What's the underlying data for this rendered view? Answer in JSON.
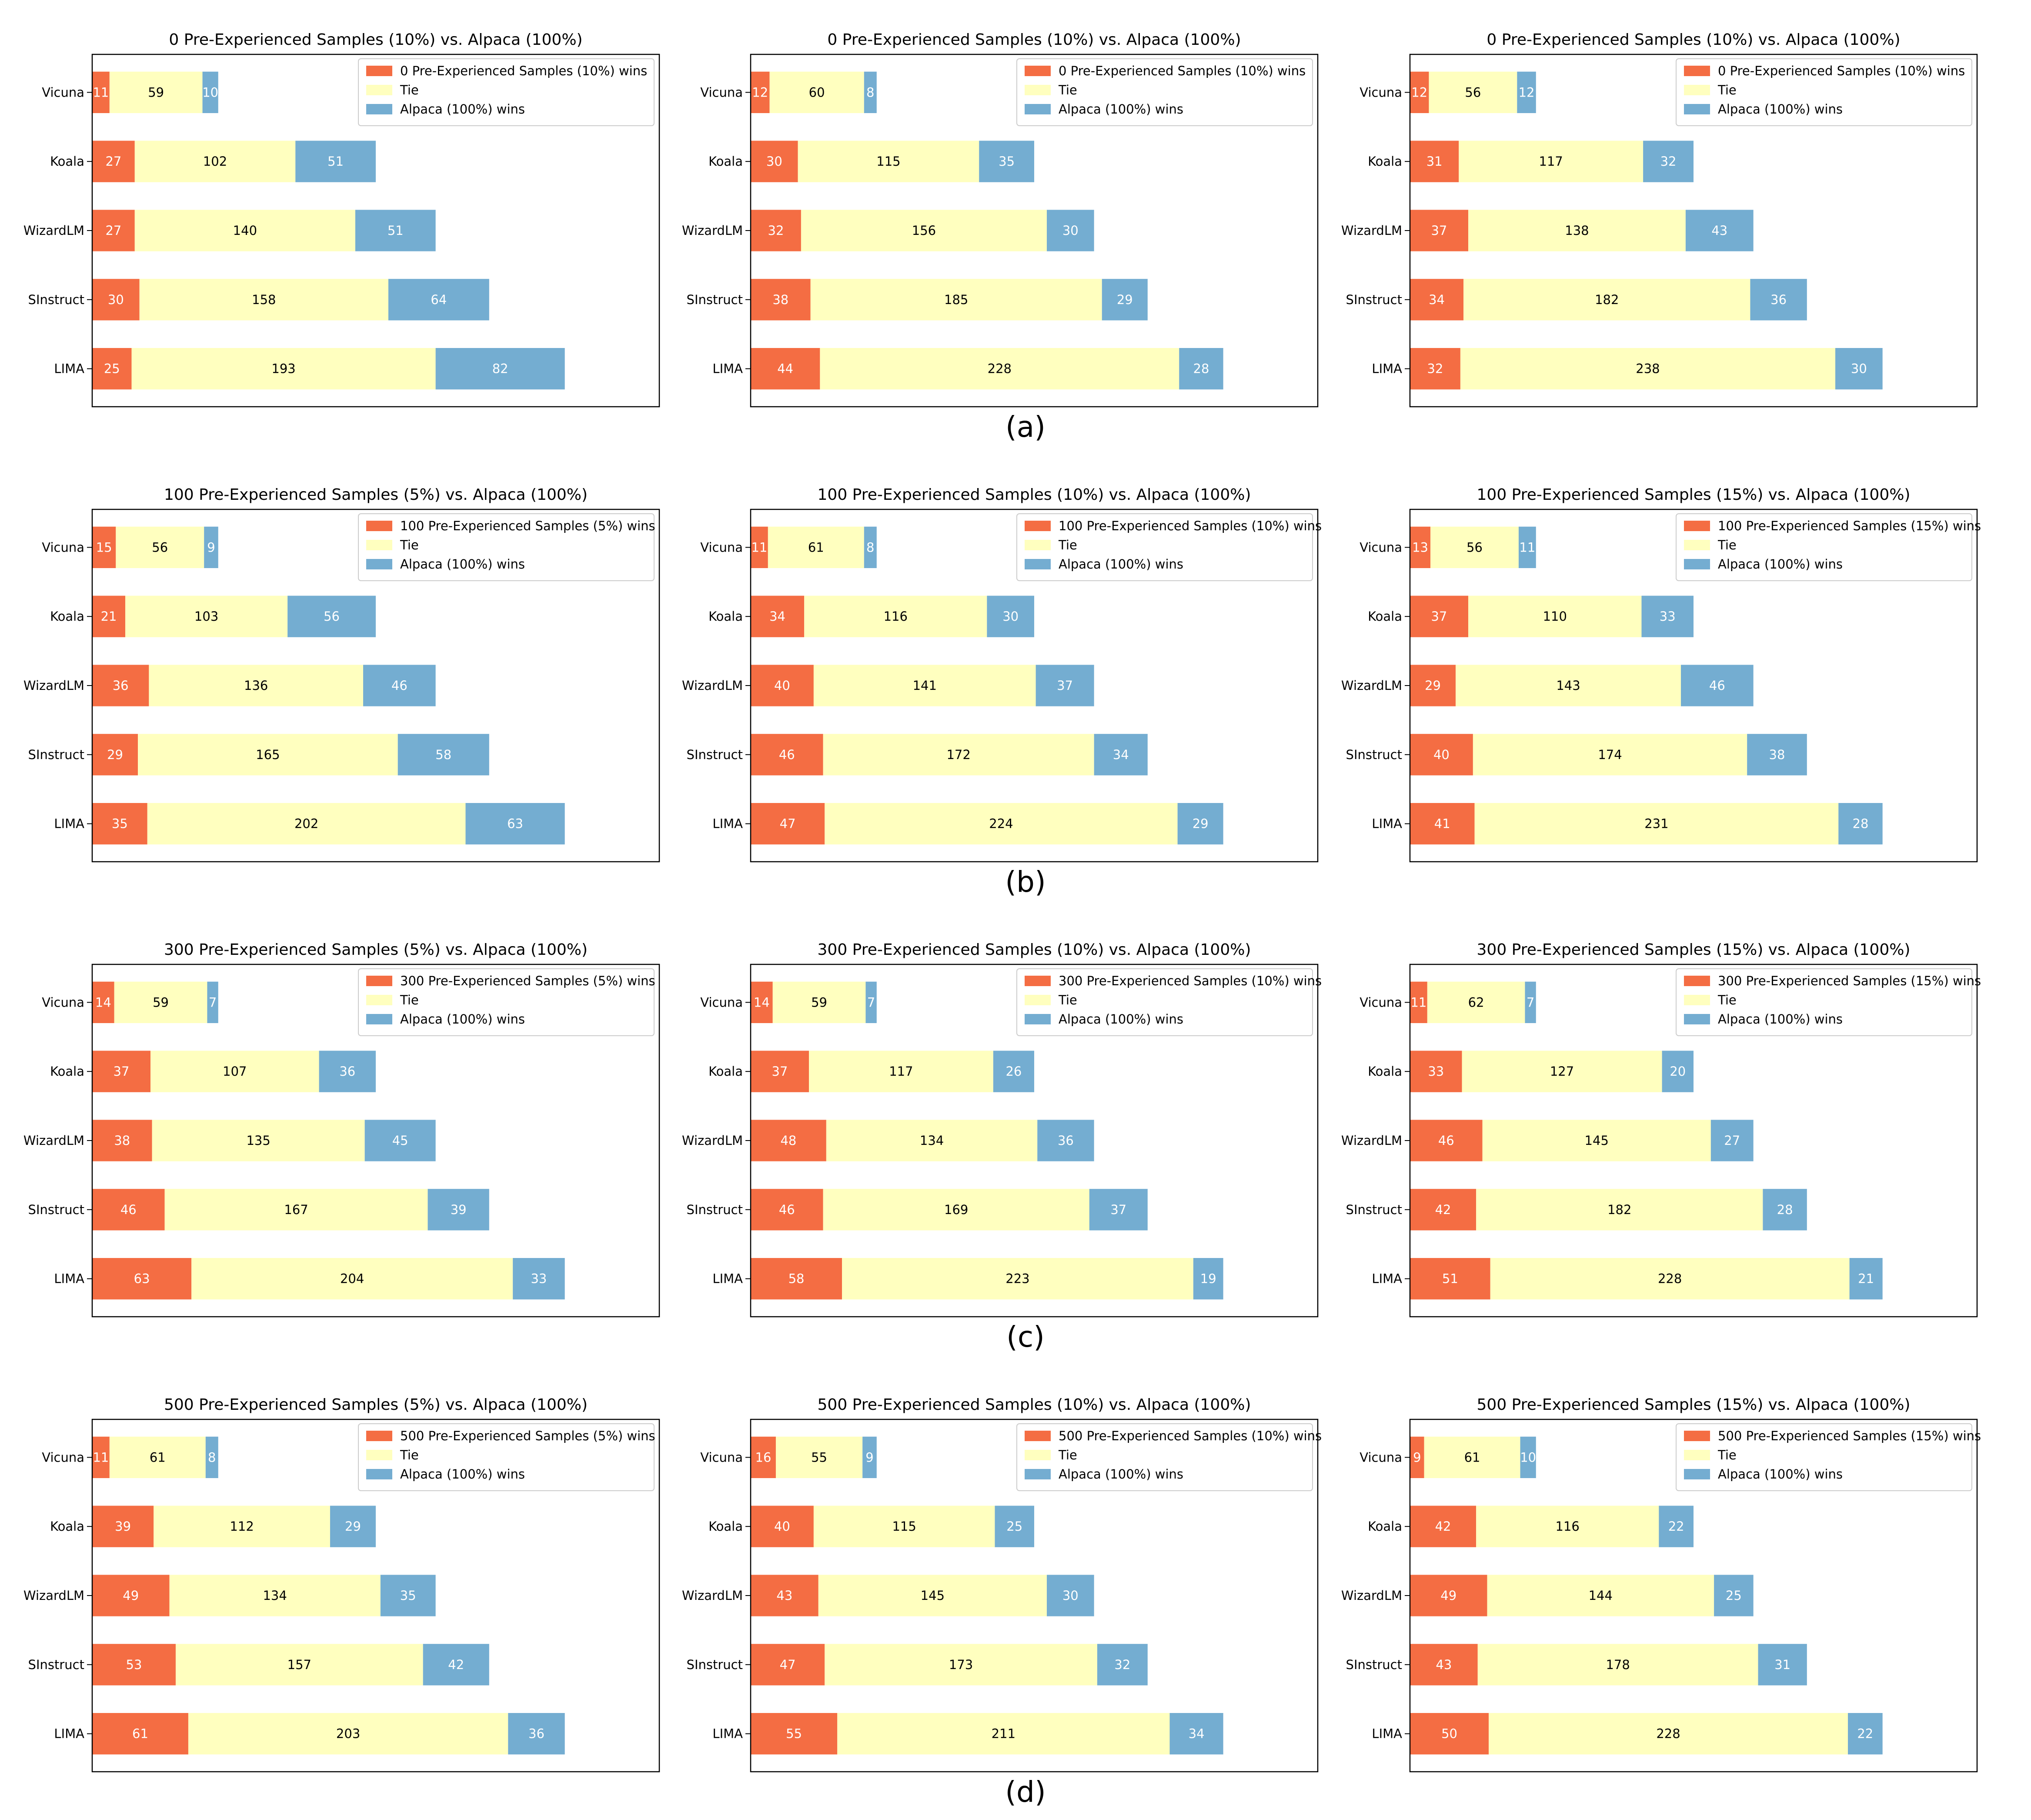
{
  "colors": {
    "wins": "#F46D43",
    "tie": "#FFFFBF",
    "loss": "#74ADD1",
    "frame": "#000000"
  },
  "categories": [
    "Vicuna",
    "Koala",
    "WizardLM",
    "SInstruct",
    "LIMA"
  ],
  "row_labels": [
    "(a)",
    "(b)",
    "(c)",
    "(d)"
  ],
  "chart_data": [
    {
      "type": "bar",
      "orientation": "horizontal-stacked",
      "title": "0 Pre-Experienced Samples (10%) vs. Alpaca (100%)",
      "categories": [
        "Vicuna",
        "Koala",
        "WizardLM",
        "SInstruct",
        "LIMA"
      ],
      "legend": [
        "0 Pre-Experienced Samples (10%) wins",
        "Tie",
        "Alpaca (100%) wins"
      ],
      "legend_position": "top-right",
      "series": [
        {
          "name": "0 Pre-Experienced Samples (10%) wins",
          "values": [
            11,
            27,
            27,
            30,
            25
          ]
        },
        {
          "name": "Tie",
          "values": [
            59,
            102,
            140,
            158,
            193
          ]
        },
        {
          "name": "Alpaca (100%) wins",
          "values": [
            10,
            51,
            51,
            64,
            82
          ]
        }
      ],
      "xlim": [
        0,
        300
      ]
    },
    {
      "type": "bar",
      "orientation": "horizontal-stacked",
      "title": "0 Pre-Experienced Samples (10%) vs. Alpaca (100%)",
      "categories": [
        "Vicuna",
        "Koala",
        "WizardLM",
        "SInstruct",
        "LIMA"
      ],
      "legend": [
        "0 Pre-Experienced Samples (10%) wins",
        "Tie",
        "Alpaca (100%) wins"
      ],
      "legend_position": "top-right",
      "series": [
        {
          "name": "0 Pre-Experienced Samples (10%) wins",
          "values": [
            12,
            30,
            32,
            38,
            44
          ]
        },
        {
          "name": "Tie",
          "values": [
            60,
            115,
            156,
            185,
            228
          ]
        },
        {
          "name": "Alpaca (100%) wins",
          "values": [
            8,
            35,
            30,
            29,
            28
          ]
        }
      ],
      "xlim": [
        0,
        300
      ]
    },
    {
      "type": "bar",
      "orientation": "horizontal-stacked",
      "title": "0 Pre-Experienced Samples (10%) vs. Alpaca (100%)",
      "categories": [
        "Vicuna",
        "Koala",
        "WizardLM",
        "SInstruct",
        "LIMA"
      ],
      "legend": [
        "0 Pre-Experienced Samples (10%) wins",
        "Tie",
        "Alpaca (100%) wins"
      ],
      "legend_position": "top-right",
      "series": [
        {
          "name": "0 Pre-Experienced Samples (10%) wins",
          "values": [
            12,
            31,
            37,
            34,
            32
          ]
        },
        {
          "name": "Tie",
          "values": [
            56,
            117,
            138,
            182,
            238
          ]
        },
        {
          "name": "Alpaca (100%) wins",
          "values": [
            12,
            32,
            43,
            36,
            30
          ]
        }
      ],
      "xlim": [
        0,
        300
      ]
    },
    {
      "type": "bar",
      "orientation": "horizontal-stacked",
      "title": "100 Pre-Experienced Samples (5%) vs. Alpaca (100%)",
      "categories": [
        "Vicuna",
        "Koala",
        "WizardLM",
        "SInstruct",
        "LIMA"
      ],
      "legend": [
        "100 Pre-Experienced Samples (5%) wins",
        "Tie",
        "Alpaca (100%) wins"
      ],
      "legend_position": "top-right",
      "series": [
        {
          "name": "100 Pre-Experienced Samples (5%) wins",
          "values": [
            15,
            21,
            36,
            29,
            35
          ]
        },
        {
          "name": "Tie",
          "values": [
            56,
            103,
            136,
            165,
            202
          ]
        },
        {
          "name": "Alpaca (100%) wins",
          "values": [
            9,
            56,
            46,
            58,
            63
          ]
        }
      ],
      "xlim": [
        0,
        300
      ]
    },
    {
      "type": "bar",
      "orientation": "horizontal-stacked",
      "title": "100 Pre-Experienced Samples (10%) vs. Alpaca (100%)",
      "categories": [
        "Vicuna",
        "Koala",
        "WizardLM",
        "SInstruct",
        "LIMA"
      ],
      "legend": [
        "100 Pre-Experienced Samples (10%) wins",
        "Tie",
        "Alpaca (100%) wins"
      ],
      "legend_position": "top-right",
      "series": [
        {
          "name": "100 Pre-Experienced Samples (10%) wins",
          "values": [
            11,
            34,
            40,
            46,
            47
          ]
        },
        {
          "name": "Tie",
          "values": [
            61,
            116,
            141,
            172,
            224
          ]
        },
        {
          "name": "Alpaca (100%) wins",
          "values": [
            8,
            30,
            37,
            34,
            29
          ]
        }
      ],
      "xlim": [
        0,
        300
      ]
    },
    {
      "type": "bar",
      "orientation": "horizontal-stacked",
      "title": "100 Pre-Experienced Samples (15%) vs. Alpaca (100%)",
      "categories": [
        "Vicuna",
        "Koala",
        "WizardLM",
        "SInstruct",
        "LIMA"
      ],
      "legend": [
        "100 Pre-Experienced Samples (15%) wins",
        "Tie",
        "Alpaca (100%) wins"
      ],
      "legend_position": "top-right",
      "series": [
        {
          "name": "100 Pre-Experienced Samples (15%) wins",
          "values": [
            13,
            37,
            29,
            40,
            41
          ]
        },
        {
          "name": "Tie",
          "values": [
            56,
            110,
            143,
            174,
            231
          ]
        },
        {
          "name": "Alpaca (100%) wins",
          "values": [
            11,
            33,
            46,
            38,
            28
          ]
        }
      ],
      "xlim": [
        0,
        300
      ]
    },
    {
      "type": "bar",
      "orientation": "horizontal-stacked",
      "title": "300 Pre-Experienced Samples (5%) vs. Alpaca (100%)",
      "categories": [
        "Vicuna",
        "Koala",
        "WizardLM",
        "SInstruct",
        "LIMA"
      ],
      "legend": [
        "300 Pre-Experienced Samples (5%) wins",
        "Tie",
        "Alpaca (100%) wins"
      ],
      "legend_position": "top-right",
      "series": [
        {
          "name": "300 Pre-Experienced Samples (5%) wins",
          "values": [
            14,
            37,
            38,
            46,
            63
          ]
        },
        {
          "name": "Tie",
          "values": [
            59,
            107,
            135,
            167,
            204
          ]
        },
        {
          "name": "Alpaca (100%) wins",
          "values": [
            7,
            36,
            45,
            39,
            33
          ]
        }
      ],
      "xlim": [
        0,
        300
      ]
    },
    {
      "type": "bar",
      "orientation": "horizontal-stacked",
      "title": "300 Pre-Experienced Samples (10%) vs. Alpaca (100%)",
      "categories": [
        "Vicuna",
        "Koala",
        "WizardLM",
        "SInstruct",
        "LIMA"
      ],
      "legend": [
        "300 Pre-Experienced Samples (10%) wins",
        "Tie",
        "Alpaca (100%) wins"
      ],
      "legend_position": "top-right",
      "series": [
        {
          "name": "300 Pre-Experienced Samples (10%) wins",
          "values": [
            14,
            37,
            48,
            46,
            58
          ]
        },
        {
          "name": "Tie",
          "values": [
            59,
            117,
            134,
            169,
            223
          ]
        },
        {
          "name": "Alpaca (100%) wins",
          "values": [
            7,
            26,
            36,
            37,
            19
          ]
        }
      ],
      "xlim": [
        0,
        300
      ]
    },
    {
      "type": "bar",
      "orientation": "horizontal-stacked",
      "title": "300 Pre-Experienced Samples (15%) vs. Alpaca (100%)",
      "categories": [
        "Vicuna",
        "Koala",
        "WizardLM",
        "SInstruct",
        "LIMA"
      ],
      "legend": [
        "300 Pre-Experienced Samples (15%) wins",
        "Tie",
        "Alpaca (100%) wins"
      ],
      "legend_position": "top-right",
      "series": [
        {
          "name": "300 Pre-Experienced Samples (15%) wins",
          "values": [
            11,
            33,
            46,
            42,
            51
          ]
        },
        {
          "name": "Tie",
          "values": [
            62,
            127,
            145,
            182,
            228
          ]
        },
        {
          "name": "Alpaca (100%) wins",
          "values": [
            7,
            20,
            27,
            28,
            21
          ]
        }
      ],
      "xlim": [
        0,
        300
      ]
    },
    {
      "type": "bar",
      "orientation": "horizontal-stacked",
      "title": "500 Pre-Experienced Samples (5%) vs. Alpaca (100%)",
      "categories": [
        "Vicuna",
        "Koala",
        "WizardLM",
        "SInstruct",
        "LIMA"
      ],
      "legend": [
        "500 Pre-Experienced Samples (5%) wins",
        "Tie",
        "Alpaca (100%) wins"
      ],
      "legend_position": "top-right",
      "series": [
        {
          "name": "500 Pre-Experienced Samples (5%) wins",
          "values": [
            11,
            39,
            49,
            53,
            61
          ]
        },
        {
          "name": "Tie",
          "values": [
            61,
            112,
            134,
            157,
            203
          ]
        },
        {
          "name": "Alpaca (100%) wins",
          "values": [
            8,
            29,
            35,
            42,
            36
          ]
        }
      ],
      "xlim": [
        0,
        300
      ]
    },
    {
      "type": "bar",
      "orientation": "horizontal-stacked",
      "title": "500 Pre-Experienced Samples (10%) vs. Alpaca (100%)",
      "categories": [
        "Vicuna",
        "Koala",
        "WizardLM",
        "SInstruct",
        "LIMA"
      ],
      "legend": [
        "500 Pre-Experienced Samples (10%) wins",
        "Tie",
        "Alpaca (100%) wins"
      ],
      "legend_position": "top-right",
      "series": [
        {
          "name": "500 Pre-Experienced Samples (10%) wins",
          "values": [
            16,
            40,
            43,
            47,
            55
          ]
        },
        {
          "name": "Tie",
          "values": [
            55,
            115,
            145,
            173,
            211
          ]
        },
        {
          "name": "Alpaca (100%) wins",
          "values": [
            9,
            25,
            30,
            32,
            34
          ]
        }
      ],
      "xlim": [
        0,
        300
      ]
    },
    {
      "type": "bar",
      "orientation": "horizontal-stacked",
      "title": "500 Pre-Experienced Samples (15%) vs. Alpaca (100%)",
      "categories": [
        "Vicuna",
        "Koala",
        "WizardLM",
        "SInstruct",
        "LIMA"
      ],
      "legend": [
        "500 Pre-Experienced Samples (15%) wins",
        "Tie",
        "Alpaca (100%) wins"
      ],
      "legend_position": "top-right",
      "series": [
        {
          "name": "500 Pre-Experienced Samples (15%) wins",
          "values": [
            9,
            42,
            49,
            43,
            50
          ]
        },
        {
          "name": "Tie",
          "values": [
            61,
            116,
            144,
            178,
            228
          ]
        },
        {
          "name": "Alpaca (100%) wins",
          "values": [
            10,
            22,
            25,
            31,
            22
          ]
        }
      ],
      "xlim": [
        0,
        300
      ]
    }
  ]
}
